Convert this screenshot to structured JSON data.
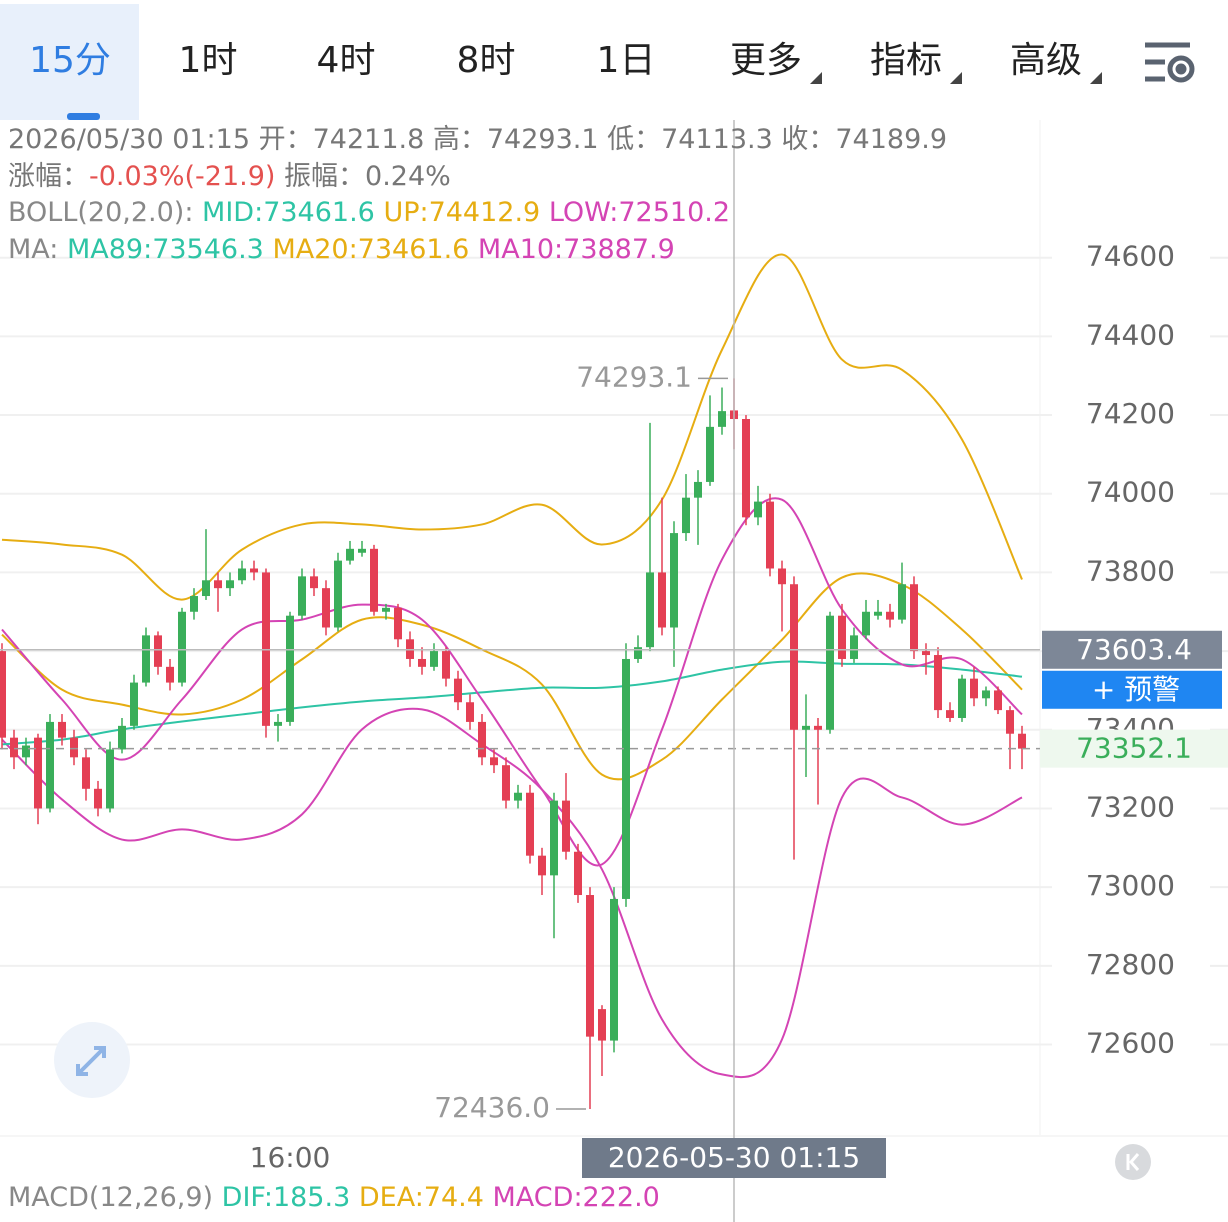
{
  "tabs": [
    "15分",
    "1时",
    "4时",
    "8时",
    "1日",
    "更多",
    "指标",
    "高级"
  ],
  "info": {
    "time": "2026/05/30 01:15",
    "open_label": "开：",
    "open": 74211.8,
    "high_label": "高：",
    "high": 74293.1,
    "low_label": "低：",
    "low": 74113.3,
    "close_label": "收：",
    "close": 74189.9,
    "change_label": "涨幅：",
    "change": "-0.03%(-21.9)",
    "amp_label": "振幅：",
    "amp": "0.24%"
  },
  "chart_data": {
    "type": "candlestick",
    "up_color": "#3aae5a",
    "down_color": "#e43f54",
    "ylim": [
      72370,
      74950
    ],
    "yticks": [
      72600,
      72800,
      73000,
      73200,
      73400,
      73600,
      73800,
      74000,
      74200,
      74400,
      74600
    ],
    "grid": true,
    "candles": [
      [
        73600,
        73620,
        73350,
        73380
      ],
      [
        73380,
        73400,
        73300,
        73330
      ],
      [
        73330,
        73380,
        73310,
        73360
      ],
      [
        73380,
        73390,
        73160,
        73200
      ],
      [
        73200,
        73440,
        73190,
        73420
      ],
      [
        73420,
        73440,
        73360,
        73380
      ],
      [
        73380,
        73400,
        73310,
        73330
      ],
      [
        73330,
        73350,
        73220,
        73250
      ],
      [
        73250,
        73270,
        73180,
        73200
      ],
      [
        73200,
        73370,
        73190,
        73350
      ],
      [
        73350,
        73430,
        73340,
        73410
      ],
      [
        73410,
        73540,
        73400,
        73520
      ],
      [
        73520,
        73660,
        73510,
        73640
      ],
      [
        73640,
        73650,
        73540,
        73560
      ],
      [
        73560,
        73580,
        73500,
        73520
      ],
      [
        73520,
        73710,
        73510,
        73700
      ],
      [
        73700,
        73760,
        73680,
        73740
      ],
      [
        73740,
        73910,
        73730,
        73780
      ],
      [
        73780,
        73800,
        73700,
        73760
      ],
      [
        73760,
        73800,
        73740,
        73780
      ],
      [
        73780,
        73830,
        73770,
        73810
      ],
      [
        73810,
        73830,
        73780,
        73800
      ],
      [
        73800,
        73810,
        73380,
        73410
      ],
      [
        73410,
        73440,
        73370,
        73420
      ],
      [
        73420,
        73700,
        73410,
        73690
      ],
      [
        73690,
        73810,
        73680,
        73790
      ],
      [
        73790,
        73810,
        73740,
        73760
      ],
      [
        73760,
        73780,
        73640,
        73660
      ],
      [
        73660,
        73850,
        73650,
        73830
      ],
      [
        73830,
        73880,
        73820,
        73860
      ],
      [
        73850,
        73880,
        73840,
        73860
      ],
      [
        73860,
        73870,
        73690,
        73700
      ],
      [
        73700,
        73720,
        73680,
        73710
      ],
      [
        73710,
        73720,
        73610,
        73630
      ],
      [
        73630,
        73650,
        73560,
        73580
      ],
      [
        73580,
        73610,
        73540,
        73560
      ],
      [
        73560,
        73620,
        73550,
        73600
      ],
      [
        73600,
        73610,
        73510,
        73530
      ],
      [
        73530,
        73550,
        73450,
        73470
      ],
      [
        73470,
        73490,
        73400,
        73420
      ],
      [
        73420,
        73440,
        73310,
        73330
      ],
      [
        73330,
        73350,
        73290,
        73310
      ],
      [
        73310,
        73330,
        73200,
        73220
      ],
      [
        73220,
        73260,
        73200,
        73240
      ],
      [
        73240,
        73260,
        73060,
        73080
      ],
      [
        73080,
        73100,
        72980,
        73030
      ],
      [
        73030,
        73240,
        72870,
        73220
      ],
      [
        73220,
        73290,
        73070,
        73090
      ],
      [
        73090,
        73110,
        72960,
        72980
      ],
      [
        72980,
        73000,
        72436,
        72620
      ],
      [
        72690,
        72700,
        72520,
        72610
      ],
      [
        72610,
        73000,
        72580,
        72970
      ],
      [
        72970,
        73620,
        72950,
        73580
      ],
      [
        73580,
        73640,
        73570,
        73610
      ],
      [
        73610,
        74180,
        73600,
        73800
      ],
      [
        73800,
        73990,
        73640,
        73660
      ],
      [
        73660,
        73930,
        73560,
        73900
      ],
      [
        73900,
        74050,
        73880,
        73990
      ],
      [
        73990,
        74060,
        73870,
        74030
      ],
      [
        74030,
        74250,
        74020,
        74170
      ],
      [
        74170,
        74270,
        74150,
        74210
      ],
      [
        74211.8,
        74293.1,
        74113.3,
        74189.9
      ],
      [
        74190,
        74200,
        73920,
        73940
      ],
      [
        73940,
        74020,
        73920,
        73980
      ],
      [
        73980,
        74000,
        73790,
        73810
      ],
      [
        73810,
        73830,
        73650,
        73770
      ],
      [
        73770,
        73790,
        73070,
        73400
      ],
      [
        73400,
        73490,
        73280,
        73410
      ],
      [
        73410,
        73430,
        73210,
        73400
      ],
      [
        73400,
        73700,
        73390,
        73690
      ],
      [
        73690,
        73720,
        73560,
        73580
      ],
      [
        73580,
        73660,
        73570,
        73640
      ],
      [
        73640,
        73730,
        73630,
        73700
      ],
      [
        73690,
        73730,
        73680,
        73700
      ],
      [
        73700,
        73720,
        73660,
        73680
      ],
      [
        73680,
        73825,
        73670,
        73770
      ],
      [
        73770,
        73790,
        73580,
        73600
      ],
      [
        73600,
        73620,
        73540,
        73590
      ],
      [
        73590,
        73610,
        73430,
        73450
      ],
      [
        73450,
        73470,
        73420,
        73430
      ],
      [
        73430,
        73540,
        73420,
        73530
      ],
      [
        73530,
        73560,
        73460,
        73480
      ],
      [
        73480,
        73510,
        73460,
        73500
      ],
      [
        73500,
        73510,
        73440,
        73450
      ],
      [
        73450,
        73460,
        73300,
        73390
      ],
      [
        73390,
        73410,
        73300,
        73352.1
      ]
    ],
    "categories": [
      null,
      null,
      null,
      null,
      null,
      null,
      null,
      null,
      null,
      null,
      null,
      null,
      null,
      null,
      null,
      null,
      null,
      null,
      null,
      null,
      null,
      null,
      null,
      null,
      "16:00",
      null,
      null,
      null,
      null,
      null,
      null,
      null,
      null,
      null,
      null,
      null,
      null,
      null,
      null,
      null,
      null,
      null,
      null,
      null,
      null,
      null,
      null,
      null,
      null,
      null,
      null,
      null,
      null,
      null,
      null,
      null,
      null,
      null,
      null,
      null,
      null,
      "2026-05-30 01:15",
      null,
      null,
      null,
      null,
      null,
      null,
      null,
      null,
      null,
      null,
      null,
      null,
      null,
      null,
      null,
      null,
      null,
      null,
      null,
      null,
      null,
      null,
      null,
      null
    ],
    "lines": [
      {
        "color": "#e6ad12",
        "x": [
          0,
          5,
          10,
          15,
          20,
          25,
          30,
          35,
          40,
          45,
          50,
          55,
          60,
          65,
          70,
          75,
          80,
          85
        ],
        "values": [
          73883,
          73871,
          73845,
          73731,
          73858,
          73922,
          73922,
          73909,
          73922,
          73972,
          73871,
          73985,
          74366,
          74608,
          74341,
          74315,
          74138,
          73782
        ]
      },
      {
        "color": "#e6ad12",
        "x": [
          0,
          5,
          10,
          15,
          20,
          25,
          30,
          35,
          40,
          45,
          50,
          55,
          60,
          65,
          70,
          75,
          80,
          85
        ],
        "values": [
          73642,
          73502,
          73464,
          73439,
          73477,
          73579,
          73680,
          73667,
          73604,
          73515,
          73286,
          73324,
          73477,
          73629,
          73787,
          73769,
          73655,
          73502
        ]
      },
      {
        "color": "#d444b4",
        "x": [
          0,
          5,
          10,
          15,
          20,
          25,
          30,
          35,
          40,
          45,
          50,
          55,
          60,
          65,
          70,
          75,
          80,
          85
        ],
        "values": [
          73375,
          73223,
          73121,
          73147,
          73121,
          73185,
          73401,
          73452,
          73363,
          73248,
          73045,
          72664,
          72524,
          72613,
          73228,
          73228,
          73159,
          73228
        ]
      },
      {
        "color": "#2ec4a5",
        "x": [
          0,
          5,
          10,
          15,
          20,
          25,
          30,
          35,
          40,
          45,
          50,
          55,
          60,
          65,
          70,
          75,
          80,
          85
        ],
        "values": [
          73363,
          73375,
          73401,
          73421,
          73439,
          73457,
          73472,
          73482,
          73495,
          73507,
          73507,
          73523,
          73553,
          73573,
          73568,
          73566,
          73553,
          73535
        ]
      },
      {
        "color": "#d444b4",
        "x": [
          0,
          5,
          10,
          15,
          20,
          25,
          30,
          35,
          40,
          45,
          50,
          55,
          60,
          65,
          70,
          75,
          80,
          85
        ],
        "values": [
          73655,
          73477,
          73324,
          73477,
          73655,
          73680,
          73718,
          73680,
          73477,
          73248,
          73058,
          73401,
          73833,
          73985,
          73706,
          73566,
          73579,
          73439
        ]
      }
    ],
    "high_marker": {
      "value": 74293.1,
      "label": "74293.1"
    },
    "low_marker": {
      "value": 72436,
      "label": "72436.0"
    },
    "crosshair": {
      "time": "2026-05-30 01:15",
      "price": 73603.4
    },
    "last_price": 73352.1,
    "alert_button": "+ 预警",
    "indicators": [
      {
        "label": "BOLL(20,2.0):",
        "items": [
          {
            "name": "MID:",
            "value": 73461.6,
            "color": "#2ec4a5"
          },
          {
            "name": "UP:",
            "value": 74412.9,
            "color": "#e6ad12"
          },
          {
            "name": "LOW:",
            "value": 72510.2,
            "color": "#d444b4"
          }
        ]
      },
      {
        "label": "MA:",
        "items": [
          {
            "name": "MA89:",
            "value": 73546.3,
            "color": "#2ec4a5"
          },
          {
            "name": "MA20:",
            "value": 73461.6,
            "color": "#e6ad12"
          },
          {
            "name": "MA10:",
            "value": 73887.9,
            "color": "#d444b4"
          }
        ]
      },
      {
        "label": "MACD(12,26,9)",
        "items": [
          {
            "name": "DIF:",
            "value": 185.3,
            "color": "#2ec4a5"
          },
          {
            "name": "DEA:",
            "value": 74.4,
            "color": "#e6ad12"
          },
          {
            "name": "MACD:",
            "value": 222,
            "label": "222.0",
            "color": "#d444b4"
          }
        ]
      }
    ]
  }
}
